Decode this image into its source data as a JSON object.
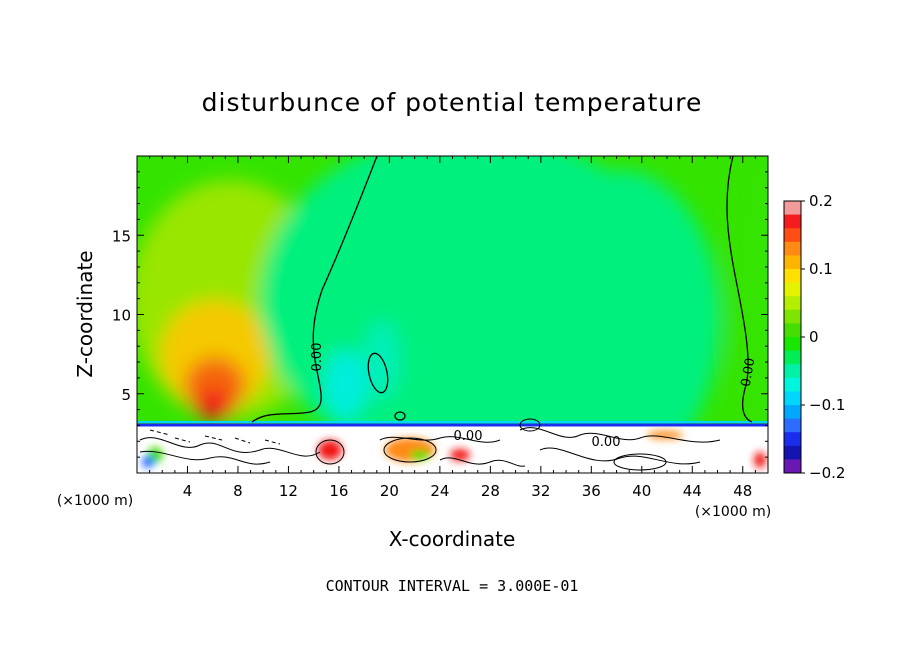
{
  "chart_data": {
    "type": "heatmap",
    "title": "disturbunce of potential temperature",
    "xlabel": "X-coordinate",
    "ylabel": "Z-coordinate",
    "x_unit": "(×1000 m)",
    "y_unit": "(×1000 m)",
    "xlim": [
      0,
      50
    ],
    "ylim": [
      0,
      20
    ],
    "x_ticks": [
      4,
      8,
      12,
      16,
      20,
      24,
      28,
      32,
      36,
      40,
      44,
      48
    ],
    "y_ticks": [
      5,
      10,
      15
    ],
    "footnote": "CONTOUR INTERVAL = 3.000E-01",
    "contour_labels": [
      "0.00",
      "0.00",
      "0.00",
      "0.00"
    ],
    "colorbar": {
      "min": -0.2,
      "max": 0.2,
      "tick_values": [
        0.2,
        0.1,
        0,
        -0.1,
        -0.2
      ],
      "tick_labels": [
        "0.2",
        "0.1",
        "0",
        "−0.1",
        "−0.2"
      ],
      "colors": [
        "#f39a9a",
        "#f41c1c",
        "#ff4d14",
        "#ff8a14",
        "#ffb400",
        "#ffe000",
        "#e6f300",
        "#b4ee00",
        "#7fe400",
        "#46dd00",
        "#18e800",
        "#00ee55",
        "#00f0a4",
        "#00f5dd",
        "#00d7ff",
        "#00a8ff",
        "#2c6cff",
        "#1a2cee",
        "#1414b0",
        "#6a18b4"
      ]
    },
    "color_stops": {
      "strong_positive": "#f21414",
      "positive": "#f5c900",
      "weak_positive": "#99e600",
      "near_zero": "#34e400",
      "weak_negative": "#00f07e",
      "negative": "#00eedc",
      "terrain": "#ffffff"
    }
  }
}
